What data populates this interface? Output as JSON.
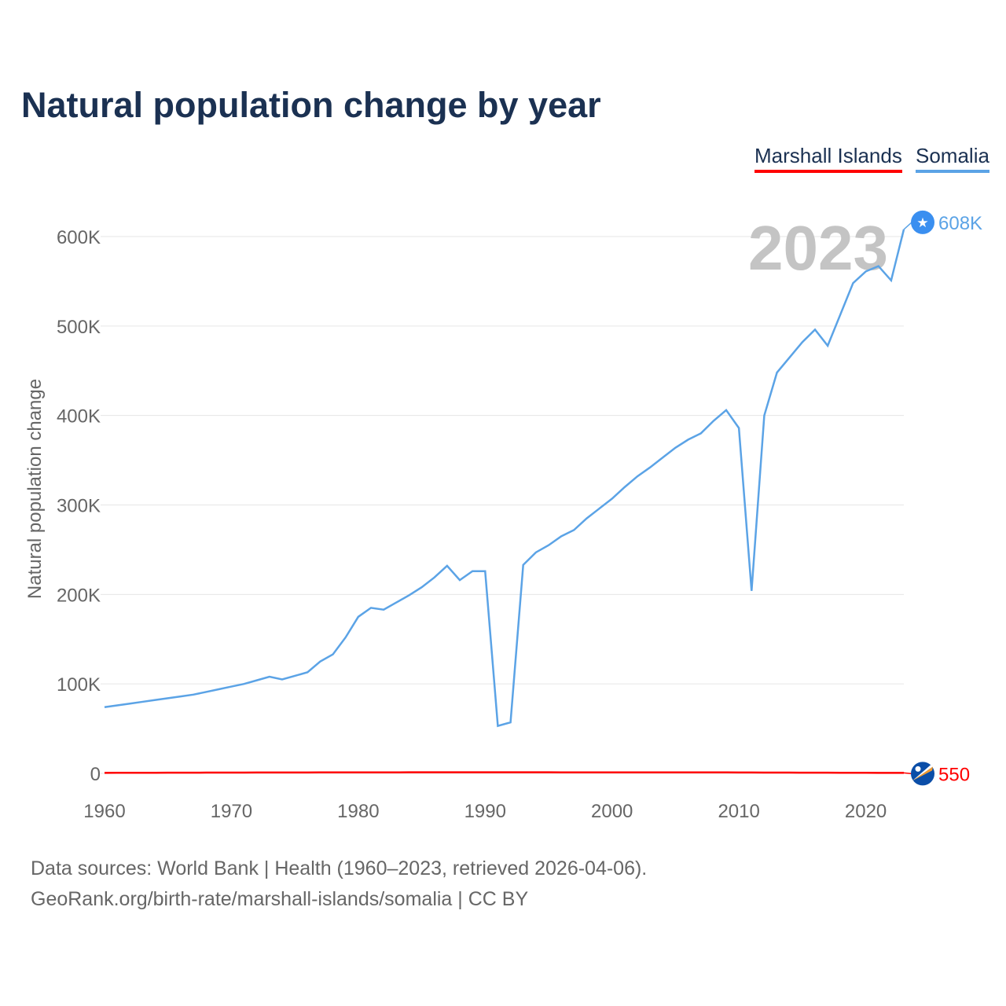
{
  "title": "Natural population change by year",
  "legend": [
    {
      "label": "Marshall Islands",
      "color": "#ff0000"
    },
    {
      "label": "Somalia",
      "color": "#5ba3e6"
    }
  ],
  "year_label": "2023",
  "footer": {
    "line1": "Data sources: World Bank | Health (1960–2023, retrieved 2026-04-06).",
    "line2": "GeoRank.org/birth-rate/marshall-islands/somalia | CC BY"
  },
  "chart_data": {
    "type": "line",
    "title": "Natural population change by year",
    "xlabel": "",
    "ylabel": "Natural population change",
    "xlim": [
      1960,
      2023
    ],
    "ylim": [
      0,
      600000
    ],
    "x_ticks": [
      1960,
      1970,
      1980,
      1990,
      2000,
      2010,
      2020
    ],
    "y_ticks": [
      0,
      100000,
      200000,
      300000,
      400000,
      500000,
      600000
    ],
    "y_tick_labels": [
      "0",
      "100K",
      "200K",
      "300K",
      "400K",
      "500K",
      "600K"
    ],
    "grid": true,
    "legend_position": "top-right",
    "x": [
      1960,
      1961,
      1962,
      1963,
      1964,
      1965,
      1966,
      1967,
      1968,
      1969,
      1970,
      1971,
      1972,
      1973,
      1974,
      1975,
      1976,
      1977,
      1978,
      1979,
      1980,
      1981,
      1982,
      1983,
      1984,
      1985,
      1986,
      1987,
      1988,
      1989,
      1990,
      1991,
      1992,
      1993,
      1994,
      1995,
      1996,
      1997,
      1998,
      1999,
      2000,
      2001,
      2002,
      2003,
      2004,
      2005,
      2006,
      2007,
      2008,
      2009,
      2010,
      2011,
      2012,
      2013,
      2014,
      2015,
      2016,
      2017,
      2018,
      2019,
      2020,
      2021,
      2022,
      2023
    ],
    "series": [
      {
        "name": "Somalia",
        "color": "#5ba3e6",
        "end_label": "608K",
        "values": [
          74000,
          76000,
          78000,
          80000,
          82000,
          84000,
          86000,
          88000,
          91000,
          94000,
          97000,
          100000,
          104000,
          108000,
          105000,
          109000,
          113000,
          125000,
          133000,
          152000,
          175000,
          185000,
          183000,
          191000,
          199000,
          208000,
          219000,
          232000,
          216000,
          226000,
          226000,
          53000,
          57000,
          233000,
          247000,
          255000,
          265000,
          272000,
          285000,
          296000,
          307000,
          320000,
          332000,
          342000,
          353000,
          364000,
          373000,
          380000,
          394000,
          406000,
          386000,
          204000,
          400000,
          448000,
          465000,
          482000,
          496000,
          478000,
          513000,
          548000,
          561000,
          567000,
          551000,
          608000
        ]
      },
      {
        "name": "Marshall Islands",
        "color": "#ff0000",
        "end_label": "550",
        "values": [
          600,
          620,
          650,
          680,
          710,
          740,
          770,
          800,
          830,
          860,
          890,
          920,
          950,
          980,
          1000,
          1020,
          1040,
          1060,
          1080,
          1100,
          1120,
          1130,
          1140,
          1150,
          1160,
          1170,
          1180,
          1190,
          1200,
          1200,
          1200,
          1200,
          1190,
          1180,
          1170,
          1160,
          1150,
          1140,
          1140,
          1140,
          1140,
          1140,
          1140,
          1140,
          1130,
          1120,
          1110,
          1100,
          1080,
          1050,
          1000,
          960,
          920,
          880,
          840,
          800,
          760,
          720,
          690,
          660,
          620,
          600,
          580,
          550
        ]
      }
    ]
  }
}
